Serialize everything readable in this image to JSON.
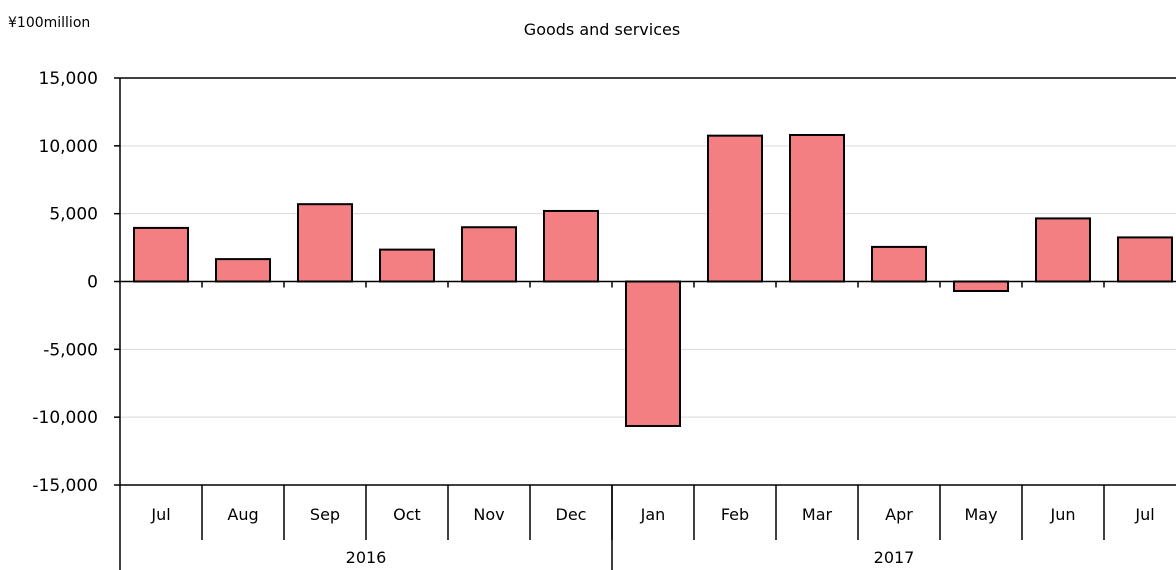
{
  "chart_data": {
    "type": "bar",
    "title": "Goods and services",
    "unit_label": "¥100million",
    "categories": [
      "Jul",
      "Aug",
      "Sep",
      "Oct",
      "Nov",
      "Dec",
      "Jan",
      "Feb",
      "Mar",
      "Apr",
      "May",
      "Jun",
      "Jul"
    ],
    "year_groups": [
      {
        "label": "2016",
        "count": 6
      },
      {
        "label": "2017",
        "count": 7
      }
    ],
    "series": [
      {
        "values": [
          3950,
          1650,
          5700,
          2350,
          4000,
          5200,
          -10650,
          10750,
          10800,
          2550,
          -700,
          4650,
          3250
        ],
        "color": "#f47f83"
      }
    ],
    "ylim": [
      -15000,
      15000
    ],
    "yticks": [
      15000,
      10000,
      5000,
      0,
      -5000,
      -10000,
      -15000
    ],
    "ytick_labels": [
      "15,000",
      "10,000",
      "5,000",
      "0",
      "-5,000",
      "-10,000",
      "-15,000"
    ],
    "grid": true,
    "legend": "none"
  }
}
